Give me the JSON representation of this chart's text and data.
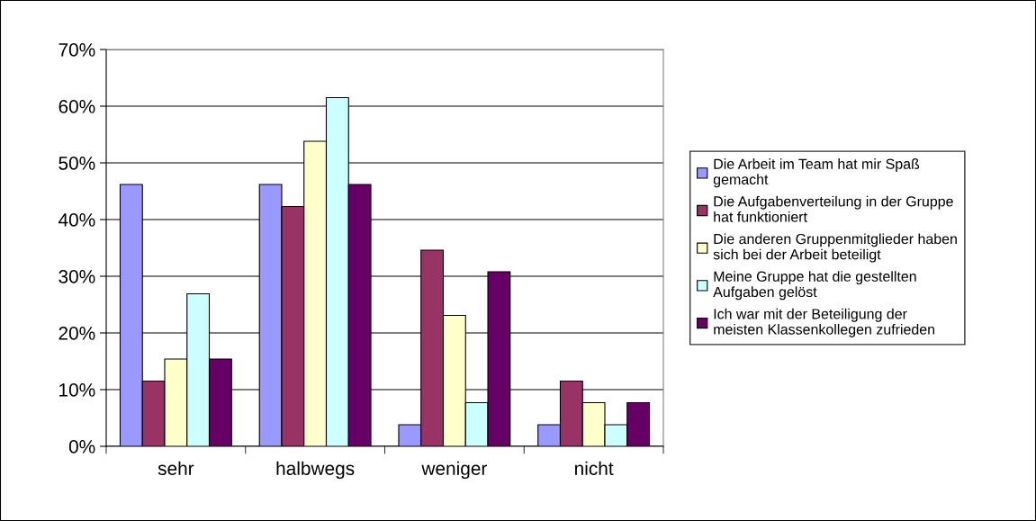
{
  "chart_data": {
    "type": "bar",
    "categories": [
      "sehr",
      "halbwegs",
      "weniger",
      "nicht"
    ],
    "series": [
      {
        "name": "Die Arbeit im Team hat mir Spaß gemacht",
        "color": "#9999ff",
        "values": [
          46.2,
          46.2,
          3.8,
          3.8
        ]
      },
      {
        "name": "Die Aufgabenverteilung in der Gruppe hat funktioniert",
        "color": "#993366",
        "values": [
          11.5,
          42.3,
          34.6,
          11.5
        ]
      },
      {
        "name": "Die anderen Gruppenmitglieder haben sich bei der Arbeit beteiligt",
        "color": "#ffffcc",
        "values": [
          15.4,
          53.8,
          23.1,
          7.7
        ]
      },
      {
        "name": "Meine Gruppe hat die gestellten Aufgaben gelöst",
        "color": "#ccffff",
        "values": [
          26.9,
          61.5,
          7.7,
          3.8
        ]
      },
      {
        "name": "Ich war mit der Beteiligung der meisten Klassenkollegen zufrieden",
        "color": "#660066",
        "values": [
          15.4,
          46.2,
          30.8,
          7.7
        ]
      }
    ],
    "ylim": [
      0,
      70
    ],
    "yticks": [
      {
        "value": 0,
        "label": "0%"
      },
      {
        "value": 10,
        "label": "10%"
      },
      {
        "value": 20,
        "label": "20%"
      },
      {
        "value": 30,
        "label": "30%"
      },
      {
        "value": 40,
        "label": "40%"
      },
      {
        "value": 50,
        "label": "50%"
      },
      {
        "value": 60,
        "label": "60%"
      },
      {
        "value": 70,
        "label": "70%"
      }
    ],
    "grid": "y",
    "legend": "right"
  }
}
